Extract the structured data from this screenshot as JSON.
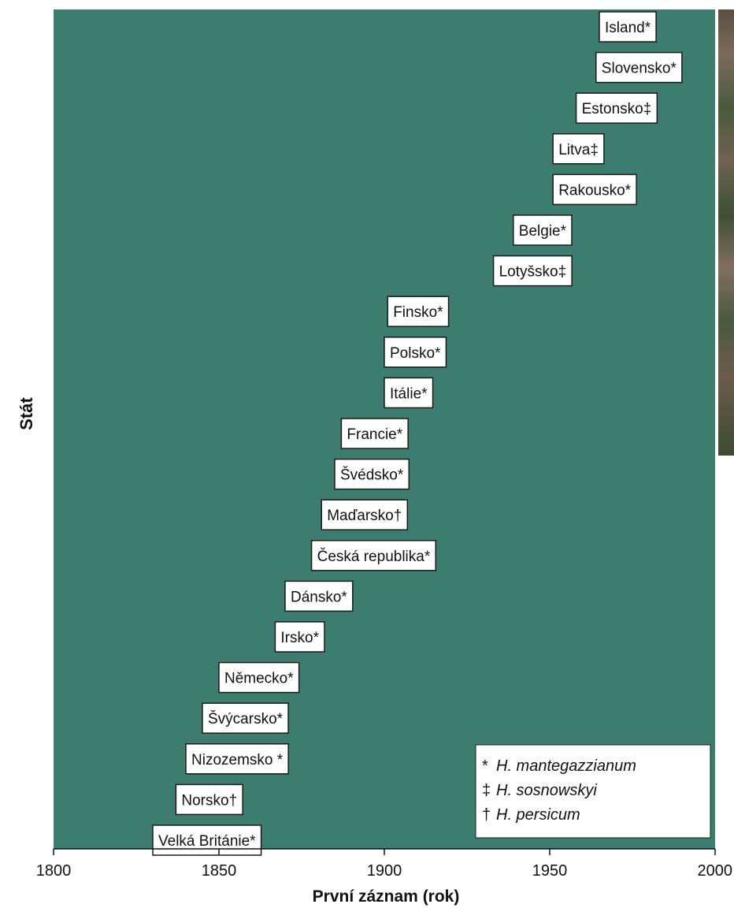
{
  "chart_data": {
    "type": "table",
    "xlabel": "První záznam (rok)",
    "ylabel": "Stát",
    "xlim": [
      1800,
      2000
    ],
    "xticks": [
      1800,
      1850,
      1900,
      1950,
      2000
    ],
    "grid": false,
    "background_color": "#3d7d70",
    "label_box_color": "#ffffff",
    "entries": [
      {
        "label": "Island*",
        "x": 1965
      },
      {
        "label": "Slovensko*",
        "x": 1964
      },
      {
        "label": "Estonsko‡",
        "x": 1958
      },
      {
        "label": "Litva‡",
        "x": 1951
      },
      {
        "label": "Rakousko*",
        "x": 1951
      },
      {
        "label": "Belgie*",
        "x": 1939
      },
      {
        "label": "Lotyšsko‡",
        "x": 1933
      },
      {
        "label": "Finsko*",
        "x": 1901
      },
      {
        "label": "Polsko*",
        "x": 1900
      },
      {
        "label": "Itálie*",
        "x": 1900
      },
      {
        "label": "Francie*",
        "x": 1887
      },
      {
        "label": "Švédsko*",
        "x": 1885
      },
      {
        "label": "Maďarsko†",
        "x": 1881
      },
      {
        "label": "Česká republika*",
        "x": 1878
      },
      {
        "label": "Dánsko*",
        "x": 1870
      },
      {
        "label": "Irsko*",
        "x": 1867
      },
      {
        "label": "Německo*",
        "x": 1850
      },
      {
        "label": "Švýcarsko*",
        "x": 1845
      },
      {
        "label": "Nizozemsko *",
        "x": 1840
      },
      {
        "label": "Norsko†",
        "x": 1837
      },
      {
        "label": "Velká Británie*",
        "x": 1830
      }
    ],
    "legend": {
      "placement": "bottom-right",
      "items": [
        {
          "symbol": "*",
          "text": "H. mantegazzianum"
        },
        {
          "symbol": "‡",
          "text": "H. sosnowskyi"
        },
        {
          "symbol": "†",
          "text": "H. persicum"
        }
      ]
    }
  }
}
